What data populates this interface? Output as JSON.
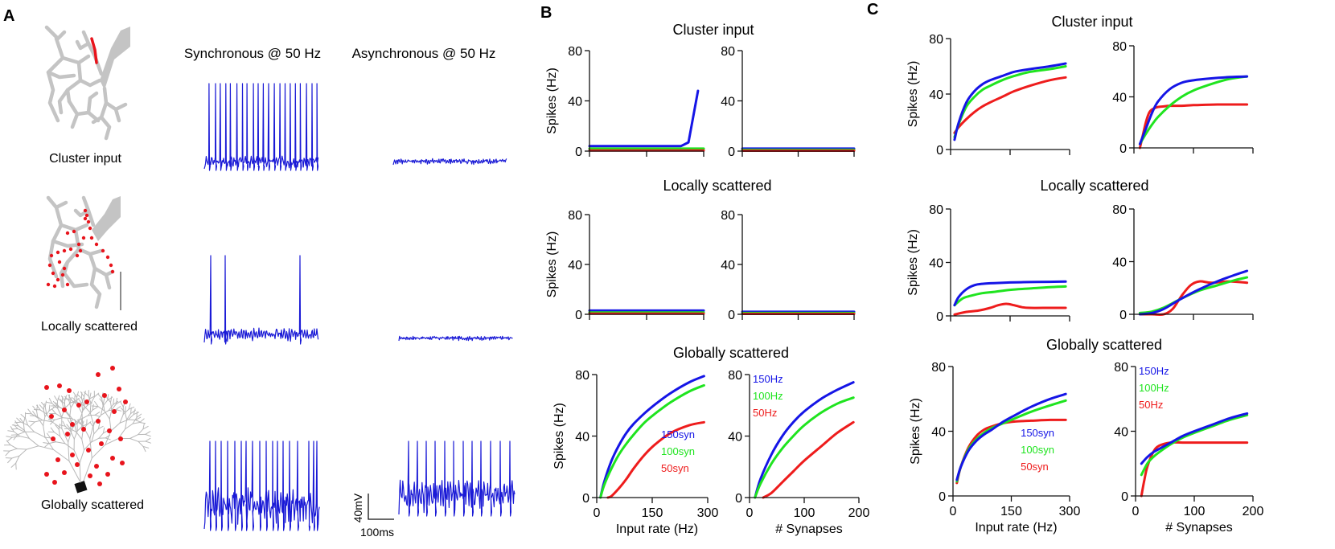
{
  "panels": {
    "a_label": "A",
    "b_label": "B",
    "c_label": "C"
  },
  "panel_a": {
    "col_sync": "Synchronous @ 50 Hz",
    "col_async": "Asynchronous @ 50 Hz",
    "rows": [
      "Cluster input",
      "Locally scattered",
      "Globally scattered"
    ],
    "scale_v": "40mV",
    "scale_t": "100ms"
  },
  "colors": {
    "s150": "#1515e6",
    "s100": "#1fe41f",
    "s50": "#ee1c1c",
    "dendrite": "#c4c4c4",
    "synapse": "#e8141c",
    "trace": "#1a1ad6"
  },
  "chart_data": [
    {
      "id": "B1",
      "type": "line",
      "title": "Cluster input",
      "ylabel": "Spikes (Hz)",
      "xlim": [
        0,
        300
      ],
      "ylim": [
        0,
        80
      ],
      "yticks": [
        0,
        40,
        80
      ],
      "xticks": [
        0,
        150,
        300
      ],
      "series": [
        {
          "name": "150",
          "color": "#1515e6",
          "x": [
            0,
            240,
            260,
            285
          ],
          "y": [
            4,
            4,
            7,
            48
          ]
        },
        {
          "name": "100",
          "color": "#1fe41f",
          "x": [
            0,
            300
          ],
          "y": [
            2,
            2
          ]
        },
        {
          "name": "50",
          "color": "#ee1c1c",
          "x": [
            0,
            300
          ],
          "y": [
            0.5,
            0.5
          ]
        }
      ]
    },
    {
      "id": "B2",
      "type": "line",
      "title": "",
      "ylabel": "",
      "xlim": [
        0,
        200
      ],
      "ylim": [
        0,
        80
      ],
      "yticks": [
        0,
        40,
        80
      ],
      "xticks": [
        0,
        100,
        200
      ],
      "series": [
        {
          "name": "150",
          "color": "#1515e6",
          "x": [
            0,
            200
          ],
          "y": [
            2,
            2
          ]
        },
        {
          "name": "100",
          "color": "#1fe41f",
          "x": [
            0,
            200
          ],
          "y": [
            1,
            1
          ]
        },
        {
          "name": "50",
          "color": "#ee1c1c",
          "x": [
            0,
            200
          ],
          "y": [
            0.3,
            0.3
          ]
        }
      ]
    },
    {
      "id": "B3",
      "type": "line",
      "title": "Locally scattered",
      "ylabel": "Spikes (Hz)",
      "xlim": [
        0,
        300
      ],
      "ylim": [
        0,
        80
      ],
      "yticks": [
        0,
        40,
        80
      ],
      "xticks": [
        0,
        150,
        300
      ],
      "series": [
        {
          "name": "150",
          "color": "#1515e6",
          "x": [
            0,
            300
          ],
          "y": [
            3,
            3
          ]
        },
        {
          "name": "100",
          "color": "#1fe41f",
          "x": [
            0,
            300
          ],
          "y": [
            1.5,
            1.5
          ]
        },
        {
          "name": "50",
          "color": "#ee1c1c",
          "x": [
            0,
            300
          ],
          "y": [
            0.5,
            0.5
          ]
        }
      ]
    },
    {
      "id": "B4",
      "type": "line",
      "title": "",
      "ylabel": "",
      "xlim": [
        0,
        200
      ],
      "ylim": [
        0,
        80
      ],
      "yticks": [
        0,
        40,
        80
      ],
      "xticks": [
        0,
        100,
        200
      ],
      "series": [
        {
          "name": "150",
          "color": "#1515e6",
          "x": [
            0,
            200
          ],
          "y": [
            2,
            2
          ]
        },
        {
          "name": "100",
          "color": "#1fe41f",
          "x": [
            0,
            200
          ],
          "y": [
            1,
            1
          ]
        },
        {
          "name": "50",
          "color": "#ee1c1c",
          "x": [
            0,
            200
          ],
          "y": [
            0.3,
            0.3
          ]
        }
      ]
    },
    {
      "id": "B5",
      "type": "line",
      "title": "Globally scattered",
      "ylabel": "Spikes (Hz)",
      "xlabel": "Input rate (Hz)",
      "xlim": [
        0,
        300
      ],
      "ylim": [
        0,
        80
      ],
      "yticks": [
        0,
        40,
        80
      ],
      "xticks": [
        0,
        150,
        300
      ],
      "xticklabels": [
        "0",
        "150",
        "300"
      ],
      "legend": [
        "150syn",
        "100syn",
        "50syn"
      ],
      "legend_pos": "bottom-right",
      "series": [
        {
          "name": "150syn",
          "color": "#1515e6",
          "x": [
            10,
            20,
            40,
            60,
            80,
            100,
            130,
            160,
            200,
            250,
            290
          ],
          "y": [
            0,
            10,
            24,
            34,
            42,
            48,
            55,
            61,
            68,
            75,
            79
          ]
        },
        {
          "name": "100syn",
          "color": "#1fe41f",
          "x": [
            10,
            20,
            40,
            60,
            80,
            100,
            130,
            160,
            200,
            250,
            290
          ],
          "y": [
            0,
            8,
            19,
            28,
            35,
            41,
            49,
            55,
            62,
            69,
            73
          ]
        },
        {
          "name": "50syn",
          "color": "#ee1c1c",
          "x": [
            30,
            40,
            60,
            80,
            100,
            130,
            160,
            200,
            250,
            290
          ],
          "y": [
            0,
            1,
            6,
            12,
            19,
            28,
            35,
            42,
            47,
            49
          ]
        }
      ]
    },
    {
      "id": "B6",
      "type": "line",
      "title": "",
      "ylabel": "",
      "xlabel": "# Synapses",
      "xlim": [
        0,
        200
      ],
      "ylim": [
        0,
        80
      ],
      "yticks": [
        0,
        40,
        80
      ],
      "xticks": [
        0,
        100,
        200
      ],
      "xticklabels": [
        "0",
        "100",
        "200"
      ],
      "legend": [
        "150Hz",
        "100Hz",
        "50Hz"
      ],
      "legend_pos": "top-left",
      "series": [
        {
          "name": "150Hz",
          "color": "#1515e6",
          "x": [
            10,
            20,
            40,
            60,
            80,
            100,
            130,
            160,
            190
          ],
          "y": [
            0,
            12,
            28,
            40,
            49,
            56,
            64,
            70,
            75
          ]
        },
        {
          "name": "100Hz",
          "color": "#1fe41f",
          "x": [
            10,
            20,
            40,
            60,
            80,
            100,
            130,
            160,
            190
          ],
          "y": [
            0,
            9,
            22,
            32,
            40,
            47,
            55,
            61,
            65
          ]
        },
        {
          "name": "50Hz",
          "color": "#ee1c1c",
          "x": [
            25,
            40,
            60,
            80,
            100,
            130,
            160,
            190
          ],
          "y": [
            0,
            3,
            10,
            17,
            24,
            33,
            42,
            49
          ]
        }
      ]
    },
    {
      "id": "C1",
      "type": "line",
      "title": "Cluster input",
      "ylabel": "Spikes (Hz)",
      "xlim": [
        0,
        300
      ],
      "ylim": [
        0,
        80
      ],
      "yticks": [
        0,
        40,
        80
      ],
      "xticks": [
        0,
        150,
        300
      ],
      "series": [
        {
          "name": "50",
          "color": "#ee1c1c",
          "x": [
            10,
            20,
            40,
            60,
            80,
            100,
            130,
            160,
            200,
            250,
            290
          ],
          "y": [
            12,
            16,
            22,
            27,
            31,
            34,
            38,
            42,
            46,
            50,
            52
          ]
        },
        {
          "name": "100",
          "color": "#1fe41f",
          "x": [
            10,
            20,
            40,
            60,
            80,
            100,
            130,
            160,
            200,
            250,
            290
          ],
          "y": [
            9,
            18,
            31,
            38,
            43,
            46,
            50,
            53,
            56,
            58,
            60
          ]
        },
        {
          "name": "150",
          "color": "#1515e6",
          "x": [
            10,
            20,
            40,
            60,
            80,
            100,
            130,
            160,
            200,
            250,
            290
          ],
          "y": [
            7,
            19,
            34,
            42,
            47,
            50,
            53,
            56,
            58,
            60,
            62
          ]
        }
      ]
    },
    {
      "id": "C2",
      "type": "line",
      "title": "",
      "ylabel": "",
      "xlim": [
        0,
        200
      ],
      "ylim": [
        0,
        80
      ],
      "yticks": [
        0,
        40,
        80
      ],
      "xticks": [
        0,
        100,
        200
      ],
      "series": [
        {
          "name": "50",
          "color": "#ee1c1c",
          "x": [
            10,
            15,
            20,
            25,
            30,
            40,
            50,
            60,
            80,
            100,
            140,
            190
          ],
          "y": [
            0,
            10,
            20,
            27,
            30,
            32,
            32.5,
            33,
            33,
            33.5,
            34,
            34
          ]
        },
        {
          "name": "100",
          "color": "#1fe41f",
          "x": [
            10,
            20,
            30,
            40,
            60,
            80,
            100,
            130,
            160,
            190
          ],
          "y": [
            3,
            11,
            18,
            24,
            33,
            40,
            45,
            50,
            54,
            56
          ]
        },
        {
          "name": "150",
          "color": "#1515e6",
          "x": [
            10,
            20,
            30,
            40,
            60,
            80,
            100,
            130,
            160,
            190
          ],
          "y": [
            3,
            15,
            27,
            36,
            46,
            51,
            53,
            54.5,
            55.5,
            56
          ]
        }
      ]
    },
    {
      "id": "C3",
      "type": "line",
      "title": "Locally scattered",
      "ylabel": "Spikes (Hz)",
      "xlim": [
        0,
        300
      ],
      "ylim": [
        0,
        80
      ],
      "yticks": [
        0,
        40,
        80
      ],
      "xticks": [
        0,
        150,
        300
      ],
      "series": [
        {
          "name": "50",
          "color": "#ee1c1c",
          "x": [
            10,
            40,
            70,
            100,
            120,
            140,
            160,
            180,
            200,
            250,
            290
          ],
          "y": [
            1,
            3,
            4,
            6,
            8,
            9,
            8,
            6.5,
            6,
            6,
            6
          ]
        },
        {
          "name": "100",
          "color": "#1fe41f",
          "x": [
            10,
            30,
            50,
            80,
            110,
            150,
            200,
            250,
            290
          ],
          "y": [
            8,
            13,
            15,
            17,
            18,
            19.5,
            20.5,
            21.5,
            22
          ]
        },
        {
          "name": "150",
          "color": "#1515e6",
          "x": [
            10,
            20,
            40,
            60,
            80,
            110,
            150,
            200,
            250,
            290
          ],
          "y": [
            8,
            14,
            20,
            23,
            24,
            24.5,
            25,
            25.3,
            25.5,
            25.7
          ]
        }
      ]
    },
    {
      "id": "C4",
      "type": "line",
      "title": "",
      "ylabel": "",
      "xlim": [
        0,
        200
      ],
      "ylim": [
        0,
        80
      ],
      "yticks": [
        0,
        40,
        80
      ],
      "xticks": [
        0,
        100,
        200
      ],
      "series": [
        {
          "name": "50",
          "color": "#ee1c1c",
          "x": [
            10,
            30,
            50,
            65,
            80,
            95,
            110,
            130,
            160,
            190
          ],
          "y": [
            0,
            0,
            0,
            4,
            14,
            22,
            25,
            24,
            25,
            24
          ]
        },
        {
          "name": "100",
          "color": "#1fe41f",
          "x": [
            10,
            30,
            50,
            80,
            110,
            140,
            170,
            190
          ],
          "y": [
            1,
            2,
            5,
            12,
            18,
            22,
            26,
            28
          ]
        },
        {
          "name": "150",
          "color": "#1515e6",
          "x": [
            10,
            30,
            50,
            80,
            110,
            140,
            170,
            190
          ],
          "y": [
            0,
            1,
            4,
            12,
            19,
            25,
            30,
            33
          ]
        }
      ]
    },
    {
      "id": "C5",
      "type": "line",
      "title": "Globally scattered",
      "ylabel": "Spikes (Hz)",
      "xlabel": "Input rate (Hz)",
      "xlim": [
        0,
        300
      ],
      "ylim": [
        0,
        80
      ],
      "yticks": [
        0,
        40,
        80
      ],
      "xticks": [
        0,
        150,
        300
      ],
      "xticklabels": [
        "0",
        "150",
        "300"
      ],
      "legend": [
        "150syn",
        "100syn",
        "50syn"
      ],
      "legend_pos": "bottom-right",
      "series": [
        {
          "name": "50syn",
          "color": "#ee1c1c",
          "x": [
            10,
            20,
            40,
            60,
            80,
            100,
            130,
            160,
            200,
            250,
            290
          ],
          "y": [
            8,
            18,
            30,
            37,
            41,
            43,
            45,
            46,
            46.5,
            47,
            47
          ]
        },
        {
          "name": "100syn",
          "color": "#1fe41f",
          "x": [
            10,
            20,
            40,
            60,
            80,
            100,
            130,
            160,
            200,
            250,
            290
          ],
          "y": [
            9,
            18,
            29,
            35,
            39,
            42,
            45,
            48,
            52,
            56,
            59
          ]
        },
        {
          "name": "150syn",
          "color": "#1515e6",
          "x": [
            10,
            20,
            40,
            60,
            80,
            100,
            130,
            160,
            200,
            250,
            290
          ],
          "y": [
            10,
            18,
            28,
            34,
            38,
            41,
            46,
            50,
            55,
            60,
            63
          ]
        }
      ]
    },
    {
      "id": "C6",
      "type": "line",
      "title": "",
      "ylabel": "",
      "xlabel": "# Synapses",
      "xlim": [
        0,
        200
      ],
      "ylim": [
        0,
        80
      ],
      "yticks": [
        0,
        40,
        80
      ],
      "xticks": [
        0,
        100,
        200
      ],
      "xticklabels": [
        "0",
        "100",
        "200"
      ],
      "legend": [
        "150Hz",
        "100Hz",
        "50Hz"
      ],
      "legend_pos": "top-left",
      "series": [
        {
          "name": "50Hz",
          "color": "#ee1c1c",
          "x": [
            10,
            15,
            20,
            30,
            40,
            60,
            80,
            120,
            160,
            190
          ],
          "y": [
            0,
            10,
            18,
            27,
            31,
            33,
            33,
            33,
            33,
            33
          ]
        },
        {
          "name": "100Hz",
          "color": "#1fe41f",
          "x": [
            10,
            20,
            30,
            40,
            60,
            80,
            100,
            130,
            160,
            190
          ],
          "y": [
            13,
            20,
            24,
            27,
            32,
            36,
            39,
            43,
            47,
            50
          ]
        },
        {
          "name": "150Hz",
          "color": "#1515e6",
          "x": [
            10,
            20,
            30,
            40,
            60,
            80,
            100,
            130,
            160,
            190
          ],
          "y": [
            20,
            24,
            27,
            29,
            33,
            37,
            40,
            44,
            48,
            51
          ]
        }
      ]
    }
  ]
}
